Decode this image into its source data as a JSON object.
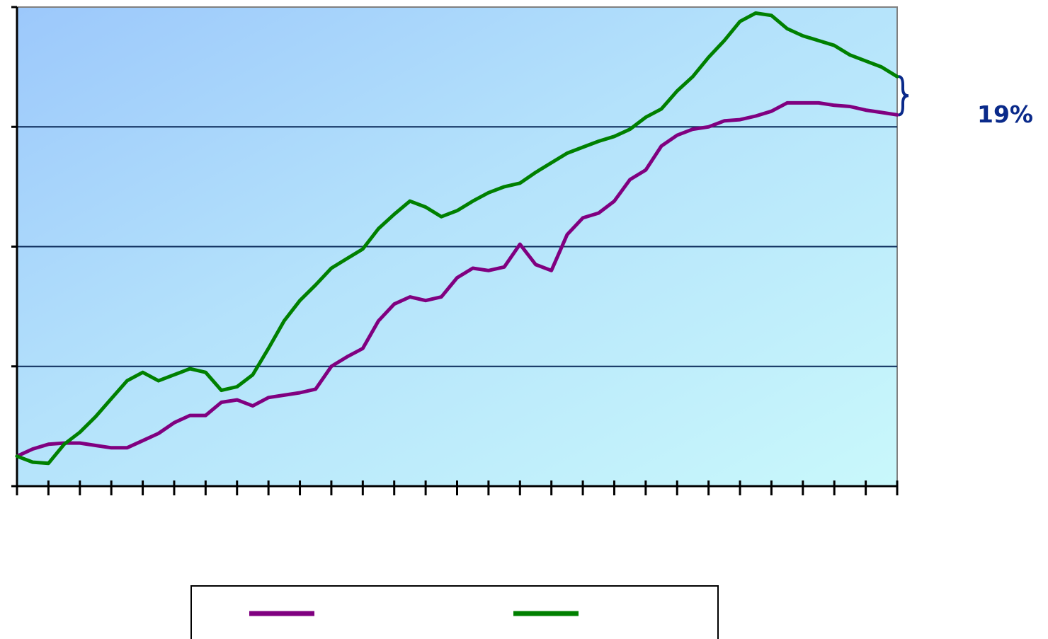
{
  "chart_data": {
    "type": "line",
    "title": "",
    "xlabel": "",
    "ylabel": "",
    "x_tick_count": 29,
    "ylim": [
      0,
      4
    ],
    "y_gridlines": [
      1,
      2,
      3
    ],
    "grid": true,
    "legend": "bottom-center",
    "series": [
      {
        "color": "#800080",
        "values": [
          0.25,
          0.31,
          0.35,
          0.36,
          0.36,
          0.34,
          0.32,
          0.32,
          0.38,
          0.44,
          0.53,
          0.59,
          0.59,
          0.7,
          0.72,
          0.67,
          0.74,
          0.76,
          0.78,
          0.81,
          1.0,
          1.08,
          1.15,
          1.38,
          1.52,
          1.58,
          1.55,
          1.58,
          1.74,
          1.82,
          1.8,
          1.83,
          2.02,
          1.85,
          1.8,
          2.1,
          2.24,
          2.28,
          2.38,
          2.56,
          2.64,
          2.84,
          2.93,
          2.98,
          3.0,
          3.05,
          3.06,
          3.09,
          3.13,
          3.2,
          3.2,
          3.2,
          3.18,
          3.17,
          3.14,
          3.12,
          3.1
        ]
      },
      {
        "color": "#008000",
        "values": [
          0.25,
          0.2,
          0.19,
          0.35,
          0.45,
          0.58,
          0.73,
          0.88,
          0.95,
          0.88,
          0.93,
          0.98,
          0.95,
          0.8,
          0.83,
          0.93,
          1.15,
          1.38,
          1.55,
          1.68,
          1.82,
          1.9,
          1.98,
          2.15,
          2.27,
          2.38,
          2.33,
          2.25,
          2.3,
          2.38,
          2.45,
          2.5,
          2.53,
          2.62,
          2.7,
          2.78,
          2.83,
          2.88,
          2.92,
          2.98,
          3.08,
          3.15,
          3.3,
          3.42,
          3.58,
          3.72,
          3.88,
          3.95,
          3.93,
          3.82,
          3.76,
          3.72,
          3.68,
          3.6,
          3.55,
          3.5,
          3.42
        ]
      }
    ],
    "annotation": {
      "text": "19%",
      "color": "#0a2a8a"
    },
    "colors": {
      "plot_gradient_start": "#9cc8fb",
      "plot_gradient_mid": "#b4e2fb",
      "plot_gradient_end": "#c9f8fb",
      "axis": "#000000",
      "gridline": "#0a2a5a",
      "brace": "#0a2a8a"
    }
  }
}
